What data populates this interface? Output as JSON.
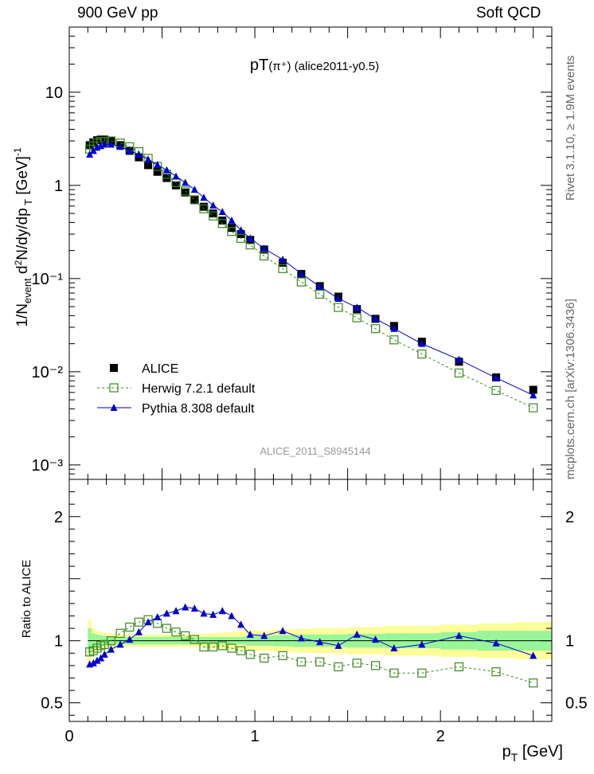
{
  "header": {
    "left": "900 GeV pp",
    "right": "Soft QCD"
  },
  "side_labels": {
    "rivet": "Rivet 3.1.10, ≥ 1.9M events",
    "mcplots": "mcplots.cern.ch [arXiv:1306.3436]"
  },
  "chart_data": [
    {
      "type": "scatter",
      "title": "pT(π⁺) (alice2011-y0.5)",
      "title_main": "pT",
      "title_part": "(π⁺)",
      "title_tag": "(alice2011-y0.5)",
      "ylabel": "1/N_event d²N/dy/dp_T [GeV]⁻¹",
      "xlabel": "",
      "xlim": [
        0,
        2.6
      ],
      "ylim": [
        0.0007,
        50
      ],
      "yscale": "log",
      "yticks": [
        {
          "value": 0.001,
          "label": "10⁻³"
        },
        {
          "value": 0.01,
          "label": "10⁻²"
        },
        {
          "value": 0.1,
          "label": "10⁻¹"
        },
        {
          "value": 1,
          "label": "1"
        },
        {
          "value": 10,
          "label": "10"
        }
      ],
      "watermark": "ALICE_2011_S8945144",
      "legend_position": "bottom-left",
      "x": [
        0.11,
        0.13,
        0.15,
        0.17,
        0.19,
        0.225,
        0.275,
        0.325,
        0.375,
        0.425,
        0.475,
        0.525,
        0.575,
        0.625,
        0.675,
        0.725,
        0.775,
        0.825,
        0.875,
        0.925,
        0.975,
        1.05,
        1.15,
        1.25,
        1.35,
        1.45,
        1.55,
        1.65,
        1.75,
        1.9,
        2.1,
        2.3,
        2.5
      ],
      "series": [
        {
          "name": "ALICE",
          "color": "#000000",
          "marker": "square-filled",
          "values": [
            2.7,
            2.9,
            3.05,
            3.1,
            3.1,
            3.0,
            2.7,
            2.35,
            2.0,
            1.65,
            1.4,
            1.2,
            1.0,
            0.84,
            0.7,
            0.59,
            0.5,
            0.42,
            0.35,
            0.3,
            0.26,
            0.205,
            0.148,
            0.112,
            0.083,
            0.064,
            0.047,
            0.037,
            0.031,
            0.021,
            0.0128,
            0.0087,
            0.0064
          ]
        },
        {
          "name": "Herwig 7.2.1 default",
          "color": "#3a8a1e",
          "marker": "square-open",
          "dash": true,
          "values": [
            2.45,
            2.65,
            2.85,
            2.95,
            2.95,
            3.0,
            2.85,
            2.6,
            2.3,
            1.95,
            1.6,
            1.32,
            1.07,
            0.87,
            0.7,
            0.56,
            0.47,
            0.39,
            0.32,
            0.27,
            0.23,
            0.175,
            0.128,
            0.092,
            0.068,
            0.049,
            0.038,
            0.029,
            0.022,
            0.0155,
            0.0097,
            0.0063,
            0.0041
          ]
        },
        {
          "name": "Pythia 8.308 default",
          "color": "#0000cc",
          "marker": "triangle-filled",
          "values": [
            2.15,
            2.35,
            2.55,
            2.65,
            2.75,
            2.75,
            2.6,
            2.35,
            2.15,
            1.9,
            1.66,
            1.46,
            1.25,
            1.07,
            0.9,
            0.74,
            0.61,
            0.52,
            0.42,
            0.33,
            0.27,
            0.21,
            0.16,
            0.113,
            0.082,
            0.061,
            0.049,
            0.037,
            0.029,
            0.02,
            0.0135,
            0.0086,
            0.0056
          ]
        }
      ]
    },
    {
      "type": "scatter",
      "title": "",
      "ylabel": "Ratio to ALICE",
      "xlabel": "p_T [GeV]",
      "xlabel_main": "p",
      "xlabel_sub": "T",
      "xlabel_unit": "[GeV]",
      "xlim": [
        0,
        2.6
      ],
      "ylim": [
        0.35,
        2.3
      ],
      "yticks": [
        {
          "value": 0.5,
          "label": "0.5"
        },
        {
          "value": 1,
          "label": "1"
        },
        {
          "value": 2,
          "label": "2"
        }
      ],
      "xticks": [
        {
          "value": 0,
          "label": "0"
        },
        {
          "value": 1,
          "label": "1"
        },
        {
          "value": 2,
          "label": "2"
        }
      ],
      "band_inner_color": "#99f599",
      "band_outer_color": "#fdfd99",
      "band_edges": [
        0.1,
        0.12,
        0.14,
        0.16,
        0.18,
        0.2,
        0.25,
        0.3,
        0.35,
        0.4,
        0.45,
        0.5,
        0.55,
        0.6,
        0.65,
        0.7,
        0.75,
        0.8,
        0.85,
        0.9,
        0.95,
        1.0,
        1.1,
        1.2,
        1.3,
        1.4,
        1.5,
        1.6,
        1.7,
        1.8,
        2.0,
        2.2,
        2.4,
        2.6
      ],
      "band_inner": [
        0.1,
        0.06,
        0.05,
        0.045,
        0.04,
        0.035,
        0.03,
        0.03,
        0.03,
        0.03,
        0.03,
        0.03,
        0.03,
        0.03,
        0.03,
        0.03,
        0.03,
        0.03,
        0.03,
        0.03,
        0.04,
        0.04,
        0.045,
        0.05,
        0.05,
        0.05,
        0.055,
        0.055,
        0.06,
        0.06,
        0.07,
        0.08,
        0.08
      ],
      "band_outer": [
        0.17,
        0.1,
        0.08,
        0.07,
        0.065,
        0.06,
        0.05,
        0.05,
        0.05,
        0.05,
        0.05,
        0.05,
        0.05,
        0.05,
        0.05,
        0.055,
        0.06,
        0.065,
        0.07,
        0.075,
        0.08,
        0.08,
        0.09,
        0.095,
        0.1,
        0.1,
        0.11,
        0.11,
        0.12,
        0.12,
        0.13,
        0.14,
        0.15
      ],
      "x": [
        0.11,
        0.13,
        0.15,
        0.17,
        0.19,
        0.225,
        0.275,
        0.325,
        0.375,
        0.425,
        0.475,
        0.525,
        0.575,
        0.625,
        0.675,
        0.725,
        0.775,
        0.825,
        0.875,
        0.925,
        0.975,
        1.05,
        1.15,
        1.25,
        1.35,
        1.45,
        1.55,
        1.65,
        1.75,
        1.9,
        2.1,
        2.3,
        2.5
      ],
      "series": [
        {
          "name": "Herwig 7.2.1 default",
          "color": "#3a8a1e",
          "marker": "square-open",
          "dash": true,
          "values": [
            0.91,
            0.92,
            0.94,
            0.96,
            0.97,
            1.0,
            1.06,
            1.11,
            1.15,
            1.17,
            1.14,
            1.1,
            1.07,
            1.04,
            1.01,
            0.95,
            0.95,
            0.96,
            0.94,
            0.92,
            0.89,
            0.86,
            0.88,
            0.83,
            0.83,
            0.79,
            0.82,
            0.8,
            0.74,
            0.74,
            0.79,
            0.75,
            0.66
          ]
        },
        {
          "name": "Pythia 8.308 default",
          "color": "#0000cc",
          "marker": "triangle-filled",
          "values": [
            0.81,
            0.82,
            0.84,
            0.86,
            0.89,
            0.93,
            0.97,
            1.01,
            1.07,
            1.15,
            1.19,
            1.22,
            1.24,
            1.27,
            1.26,
            1.22,
            1.21,
            1.24,
            1.2,
            1.13,
            1.05,
            1.04,
            1.08,
            1.02,
            0.99,
            0.96,
            1.05,
            1.01,
            0.94,
            0.97,
            1.04,
            0.98,
            0.88
          ]
        }
      ]
    }
  ]
}
